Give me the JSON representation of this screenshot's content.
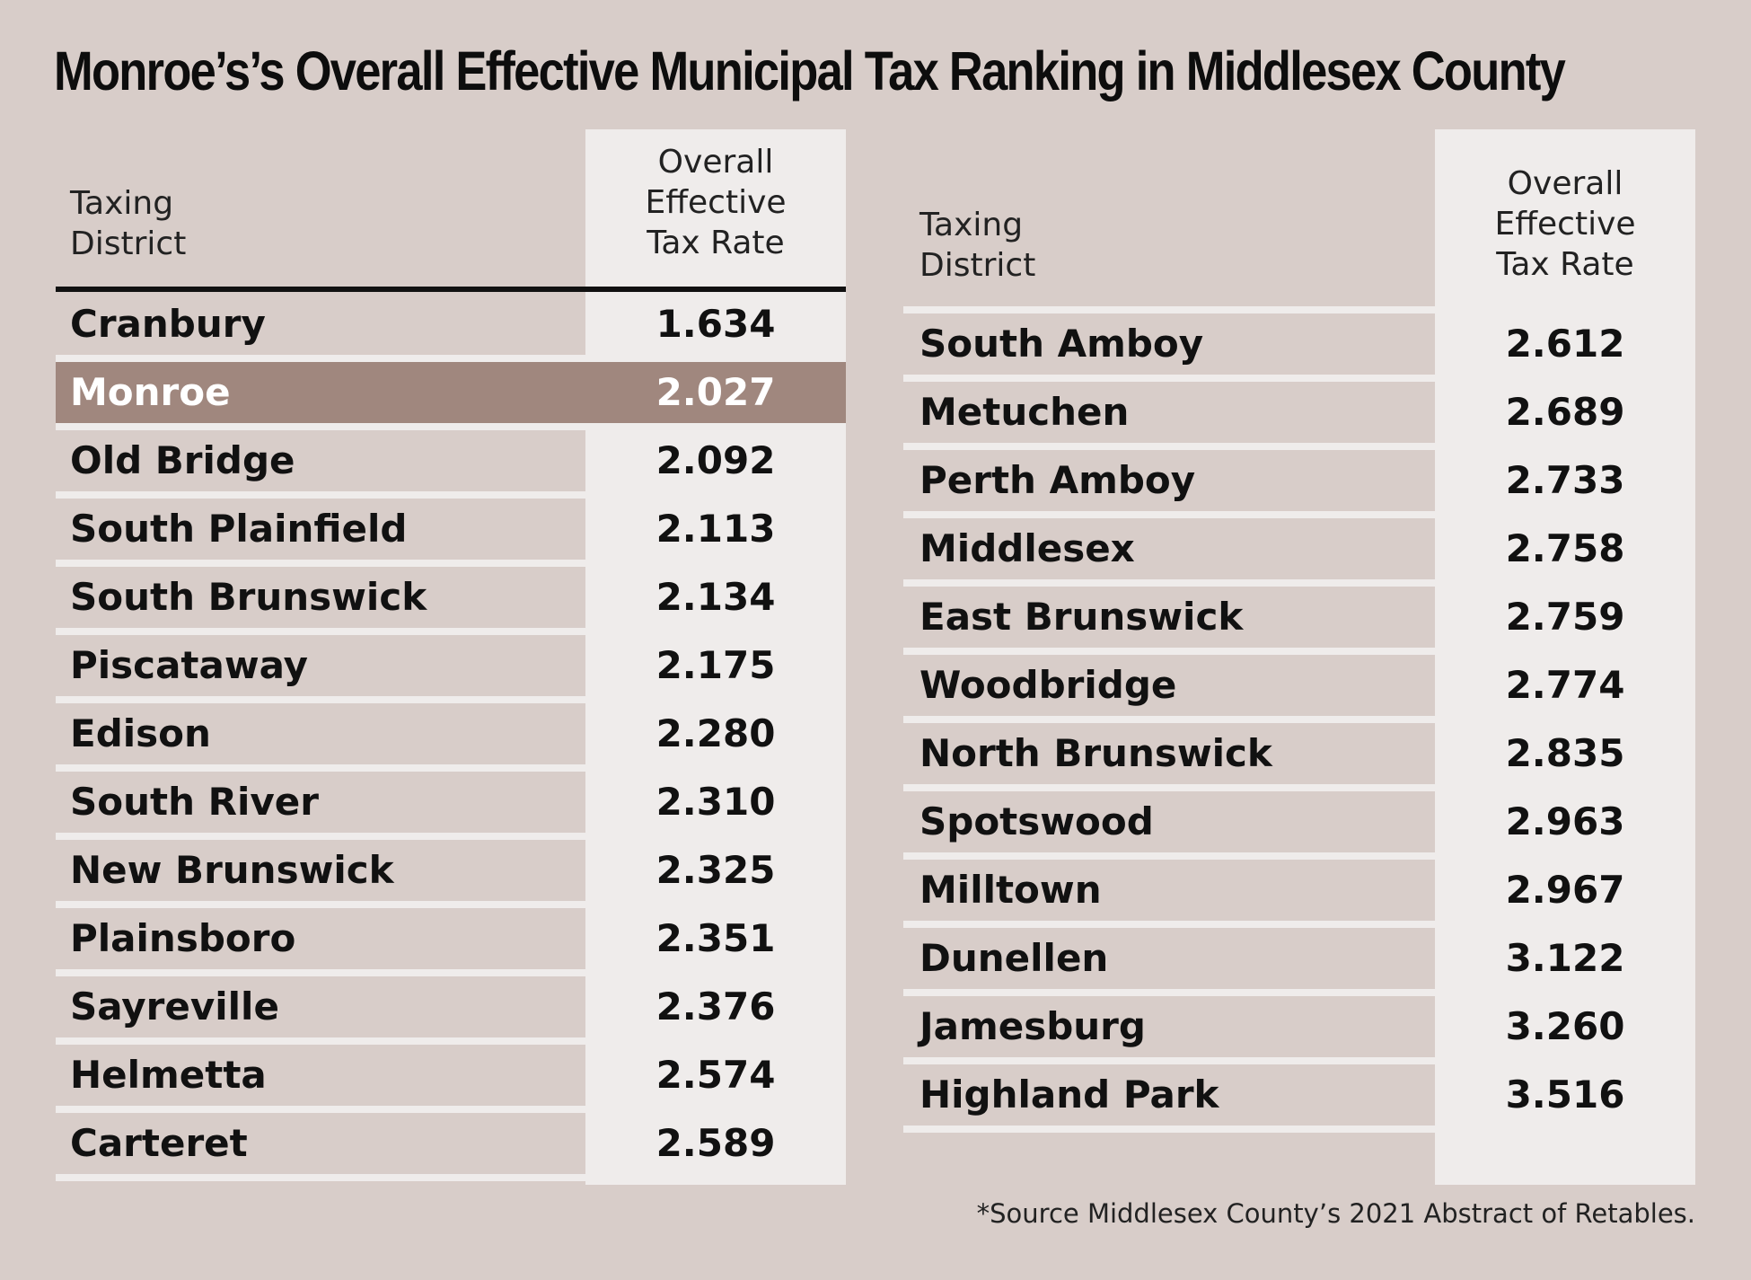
{
  "title": "Monroe’s’s Overall Effective Municipal Tax Ranking in Middlesex County",
  "footer": "*Source Middlesex County’s 2021 Abstract of Retables.",
  "colors": {
    "background": "#d8cdc9",
    "column": "#efeceb",
    "highlight": "#a0877e"
  },
  "chart_data": {
    "type": "table",
    "title": "Monroe’s’s Overall Effective Municipal Tax Ranking in Middlesex County",
    "columns": [
      "Taxing\nDistrict",
      "Overall\nEffective\nTax Rate"
    ],
    "highlight": "Monroe",
    "tables": [
      {
        "rows": [
          {
            "district": "Cranbury",
            "rate": "1.634"
          },
          {
            "district": "Monroe",
            "rate": "2.027"
          },
          {
            "district": "Old Bridge",
            "rate": "2.092"
          },
          {
            "district": "South Plainfield",
            "rate": "2.113"
          },
          {
            "district": "South Brunswick",
            "rate": "2.134"
          },
          {
            "district": "Piscataway",
            "rate": "2.175"
          },
          {
            "district": "Edison",
            "rate": "2.280"
          },
          {
            "district": "South River",
            "rate": "2.310"
          },
          {
            "district": "New Brunswick",
            "rate": "2.325"
          },
          {
            "district": "Plainsboro",
            "rate": "2.351"
          },
          {
            "district": "Sayreville",
            "rate": "2.376"
          },
          {
            "district": "Helmetta",
            "rate": "2.574"
          },
          {
            "district": "Carteret",
            "rate": "2.589"
          }
        ]
      },
      {
        "rows": [
          {
            "district": "South Amboy",
            "rate": "2.612"
          },
          {
            "district": "Metuchen",
            "rate": "2.689"
          },
          {
            "district": "Perth Amboy",
            "rate": "2.733"
          },
          {
            "district": "Middlesex",
            "rate": "2.758"
          },
          {
            "district": "East Brunswick",
            "rate": "2.759"
          },
          {
            "district": "Woodbridge",
            "rate": "2.774"
          },
          {
            "district": "North Brunswick",
            "rate": "2.835"
          },
          {
            "district": "Spotswood",
            "rate": "2.963"
          },
          {
            "district": "Milltown",
            "rate": "2.967"
          },
          {
            "district": "Dunellen",
            "rate": "3.122"
          },
          {
            "district": "Jamesburg",
            "rate": "3.260"
          },
          {
            "district": "Highland Park",
            "rate": "3.516"
          }
        ]
      }
    ]
  }
}
